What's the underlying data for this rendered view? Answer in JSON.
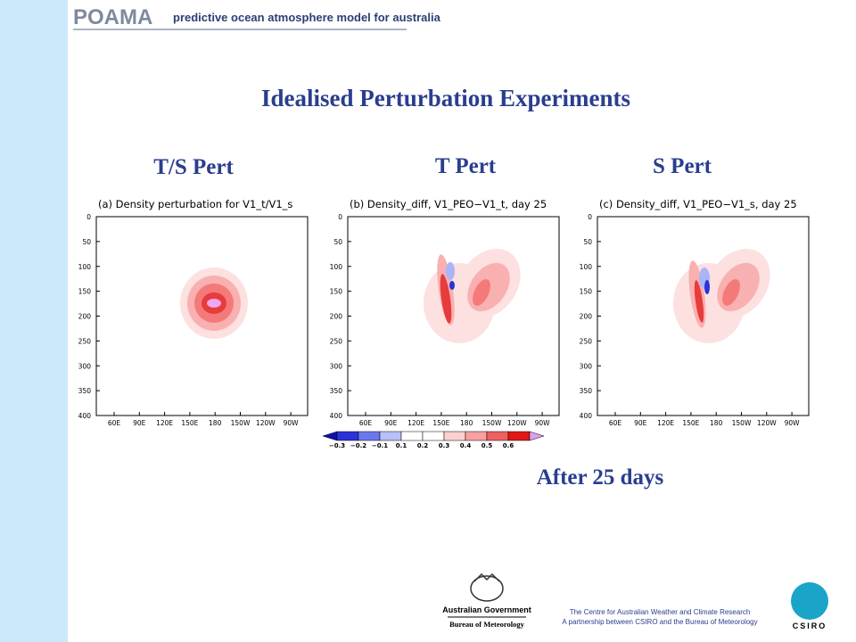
{
  "header": {
    "logo": "POAMA",
    "tagline": "predictive ocean atmosphere model for australia"
  },
  "title": "Idealised Perturbation Experiments",
  "panels": [
    {
      "label": "T/S Pert",
      "plot_title": "(a) Density perturbation for V1_t/V1_s"
    },
    {
      "label": "T Pert",
      "plot_title": "(b) Density_diff, V1_PEO−V1_t, day 25"
    },
    {
      "label": "S Pert",
      "plot_title": "(c) Density_diff, V1_PEO−V1_s, day 25"
    }
  ],
  "y_ticks": [
    0,
    50,
    100,
    150,
    200,
    250,
    300,
    350,
    400
  ],
  "x_ticks": [
    "60E",
    "90E",
    "120E",
    "150E",
    "180",
    "150W",
    "120W",
    "90W"
  ],
  "colorbar": {
    "labels": [
      "−0.3",
      "−0.2",
      "−0.1",
      "0.1",
      "0.2",
      "0.3",
      "0.4",
      "0.5",
      "0.6"
    ]
  },
  "note": "After 25 days",
  "footer": {
    "gov": "Australian Government",
    "bureau": "Bureau of Meteorology",
    "centre": "The Centre for Australian Weather and Climate Research",
    "partnership": "A partnership between CSIRO and the Bureau of Meteorology",
    "csiro": "CSIRO"
  }
}
